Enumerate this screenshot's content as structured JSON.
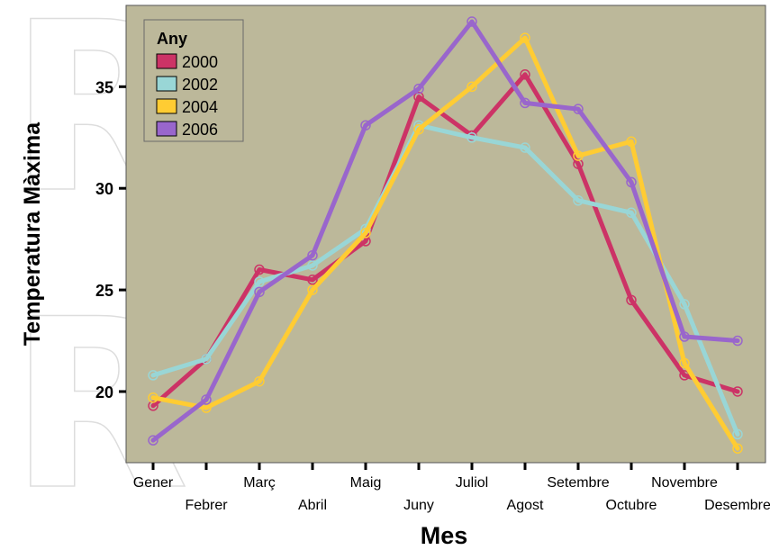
{
  "chart_data": {
    "type": "line",
    "title": "",
    "xlabel": "Mes",
    "ylabel": "Temperatura Màxima",
    "categories": [
      "Gener",
      "Febrer",
      "Març",
      "Abril",
      "Maig",
      "Juny",
      "Juliol",
      "Agost",
      "Setembre",
      "Octubre",
      "Novembre",
      "Desembre"
    ],
    "ylim": [
      16.5,
      39
    ],
    "yticks": [
      20,
      25,
      30,
      35
    ],
    "grid": false,
    "legend": {
      "title": "Any",
      "placement": "top-left"
    },
    "series": [
      {
        "name": "2000",
        "color": "#CC3366",
        "values": [
          19.3,
          21.6,
          26.0,
          25.5,
          27.4,
          34.5,
          32.6,
          35.6,
          31.2,
          24.5,
          20.8,
          20.0
        ]
      },
      {
        "name": "2002",
        "color": "#99D6D6",
        "values": [
          20.8,
          21.6,
          25.4,
          26.2,
          28.0,
          33.1,
          32.5,
          32.0,
          29.4,
          28.8,
          24.3,
          17.9
        ]
      },
      {
        "name": "2004",
        "color": "#FFCC33",
        "values": [
          19.7,
          19.2,
          20.5,
          25.0,
          27.8,
          32.9,
          35.0,
          37.4,
          31.6,
          32.3,
          21.4,
          17.2
        ]
      },
      {
        "name": "2006",
        "color": "#9966CC",
        "values": [
          17.6,
          19.6,
          24.9,
          26.7,
          33.1,
          34.9,
          38.2,
          34.2,
          33.9,
          30.3,
          22.7,
          22.5
        ]
      }
    ]
  },
  "watermark": {
    "text": "R"
  },
  "colors": {
    "plot_background": "#BCB89A",
    "frame": "#555555"
  }
}
